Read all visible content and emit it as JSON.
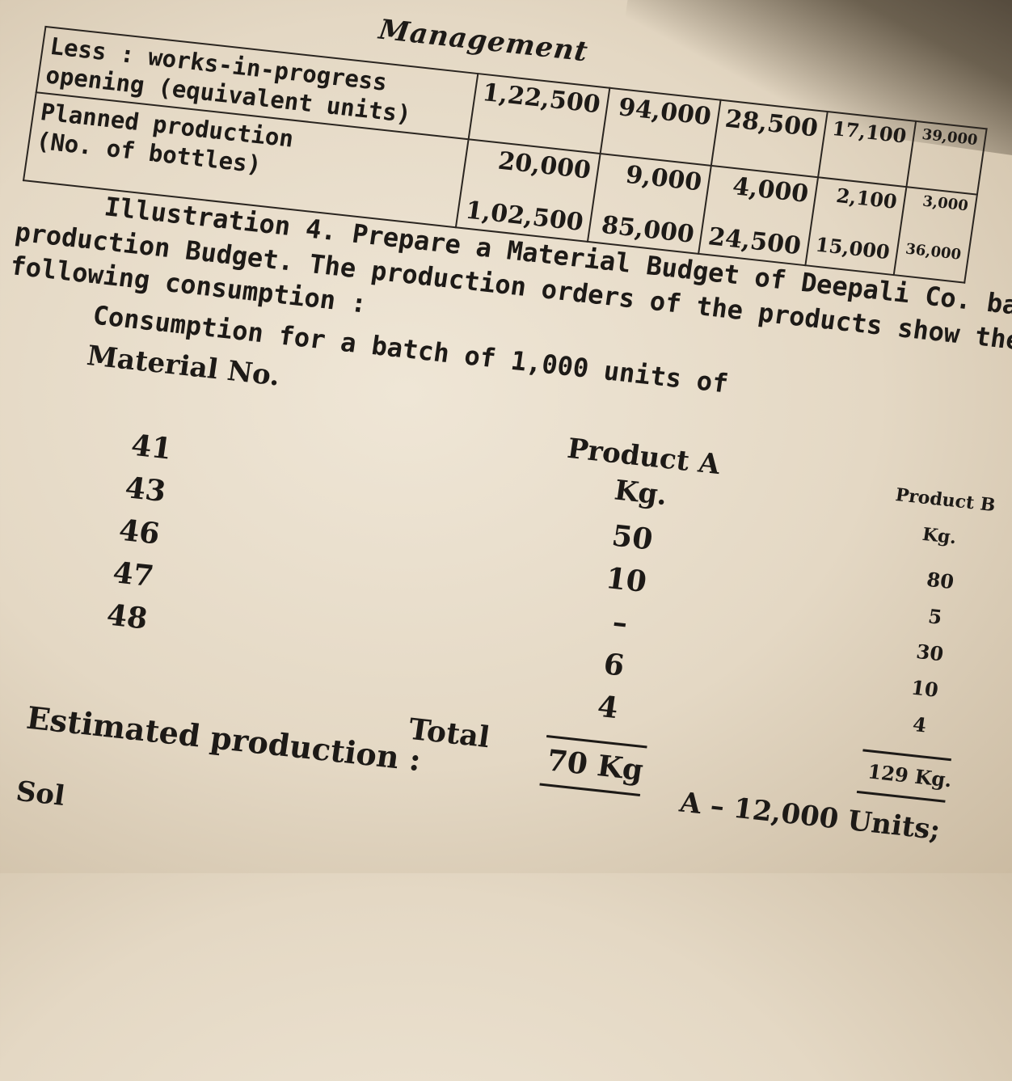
{
  "header": "Management",
  "table": {
    "rows": [
      {
        "label_lines": [
          "Less : works-in-progress",
          "opening (equivalent units)"
        ],
        "values": [
          "1,22,500",
          "94,000",
          "28,500",
          "17,100",
          "39,000"
        ]
      },
      {
        "label_lines": [
          "",
          ""
        ],
        "values": [
          "20,000",
          "9,000",
          "4,000",
          "2,100",
          "3,000"
        ]
      },
      {
        "label_lines": [
          "Planned production",
          "(No. of bottles)"
        ],
        "values": [
          "1,02,500",
          "85,000",
          "24,500",
          "15,000",
          "36,000"
        ]
      }
    ]
  },
  "illustration": {
    "line1_bold": "Illustration 4.",
    "line1_rest": " Prepare a Material Budget of Deepali Co. based on",
    "line2": "production Budget. The production orders of the products show the",
    "line3": "following consumption :",
    "consumption_title": "Consumption for a batch of 1,000 units of",
    "material_header": "Material No.",
    "product_a_header": "Product A",
    "product_b_header": "Product B",
    "unit_a": "Kg.",
    "unit_b": "Kg.",
    "materials": [
      "41",
      "43",
      "46",
      "47",
      "48"
    ],
    "product_a_values": [
      "50",
      "10",
      "–",
      "6",
      "4"
    ],
    "product_b_values": [
      "80",
      "5",
      "30",
      "10",
      "4"
    ],
    "total_label": "Total",
    "total_a": "70 Kg",
    "total_b": "129 Kg.",
    "estimated_label": "Estimated production :",
    "estimated_a": "A – 12,000 Units;",
    "solution_label": "Sol"
  }
}
